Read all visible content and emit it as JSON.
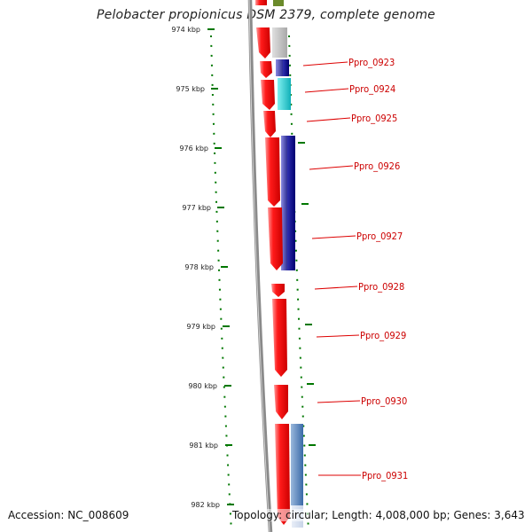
{
  "title": "Pelobacter propionicus DSM 2379, complete genome",
  "footer": {
    "accession": "Accession: NC_008609",
    "topology": "Topology: circular; Length: 4,008,000 bp; Genes: 3,643"
  },
  "colors": {
    "cds_forward": "#ff0000",
    "backbone": "#808080",
    "gene_label": "#cc0000",
    "tick": "#006600",
    "gray_feature": "#b0b0b0",
    "indigo_feature": "#3a3aa8",
    "teal_feature": "#20c8c8",
    "steelblue_feature": "#5a8ac0"
  },
  "ruler": {
    "unit": "kbp",
    "ticks": [
      {
        "label": "974 kbp",
        "value": 974
      },
      {
        "label": "975 kbp",
        "value": 975
      },
      {
        "label": "976 kbp",
        "value": 976
      },
      {
        "label": "977 kbp",
        "value": 977
      },
      {
        "label": "978 kbp",
        "value": 978
      },
      {
        "label": "979 kbp",
        "value": 979
      },
      {
        "label": "980 kbp",
        "value": 980
      },
      {
        "label": "981 kbp",
        "value": 981
      },
      {
        "label": "982 kbp",
        "value": 982
      }
    ]
  },
  "genes": [
    {
      "label": "Ppro_0923"
    },
    {
      "label": "Ppro_0924"
    },
    {
      "label": "Ppro_0925"
    },
    {
      "label": "Ppro_0926"
    },
    {
      "label": "Ppro_0927"
    },
    {
      "label": "Ppro_0928"
    },
    {
      "label": "Ppro_0929"
    },
    {
      "label": "Ppro_0930"
    },
    {
      "label": "Ppro_0931"
    }
  ]
}
